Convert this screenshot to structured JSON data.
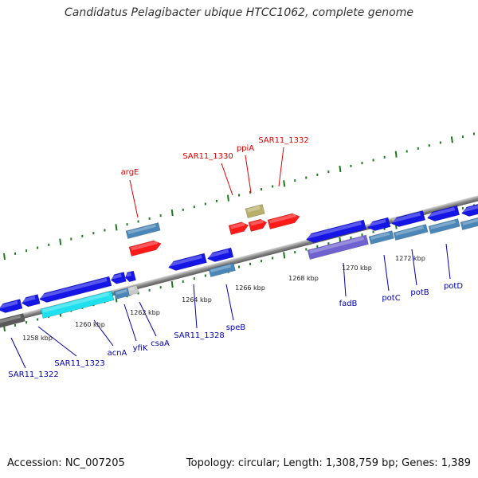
{
  "title": "Candidatus Pelagibacter ubique HTCC1062, complete genome",
  "accession": "Accession: NC_007205",
  "topology": "Topology: circular; Length: 1,308,759 bp; Genes: 1,389",
  "colors": {
    "backbone": "#9a9a9a",
    "gene_blue": "#1515e6",
    "gene_red": "#ff1a1a",
    "gene_steel": "#4a87b8",
    "gene_cyan": "#1ee0ee",
    "gene_purple": "#6f62d0",
    "gene_khaki": "#b8b06a",
    "gene_grey": "#5a5a5a",
    "gene_lightgrey": "#c8c8c8",
    "dots": "#1c7a1c",
    "label_red": "#dd0000",
    "label_blue": "#0000aa"
  },
  "tick_labels": [
    "1258 kbp",
    "1260 kbp",
    "1262 kbp",
    "1264 kbp",
    "1266 kbp",
    "1268 kbp",
    "1270 kbp",
    "1272 kbp"
  ],
  "labels_top": [
    "argE",
    "SAR11_1330",
    "ppiA",
    "SAR11_1332"
  ],
  "labels_bottom": [
    "SAR11_1322",
    "SAR11_1323",
    "acnA",
    "yfiK",
    "csaA",
    "SAR11_1328",
    "speB",
    "fadB",
    "potC",
    "potB",
    "potD"
  ]
}
